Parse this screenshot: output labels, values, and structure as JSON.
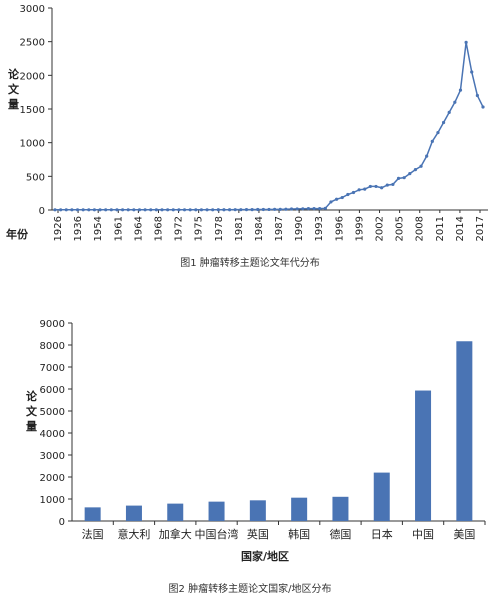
{
  "chart_data": [
    {
      "type": "line",
      "ylabel": "论文量",
      "xlabel": "年份",
      "caption": "图1 肿瘤转移主题论文年代分布",
      "ylim": [
        0,
        3000
      ],
      "yticks": [
        0,
        500,
        1000,
        1500,
        2000,
        2500,
        3000
      ],
      "xtick_labels": [
        "1926",
        "1936",
        "1954",
        "1961",
        "1964",
        "1968",
        "1972",
        "1975",
        "1978",
        "1981",
        "1984",
        "1987",
        "1990",
        "1993",
        "1996",
        "1999",
        "2002",
        "2005",
        "2008",
        "2011",
        "2014",
        "2017"
      ],
      "color": "#4a74b4",
      "values": [
        3,
        3,
        3,
        3,
        3,
        3,
        3,
        3,
        3,
        3,
        3,
        3,
        3,
        3,
        3,
        3,
        3,
        3,
        3,
        3,
        3,
        3,
        3,
        3,
        3,
        3,
        3,
        3,
        3,
        4,
        4,
        4,
        5,
        5,
        6,
        6,
        7,
        7,
        8,
        10,
        10,
        12,
        15,
        16,
        18,
        20,
        20,
        20,
        25,
        120,
        160,
        185,
        230,
        260,
        300,
        310,
        350,
        350,
        330,
        370,
        380,
        470,
        480,
        540,
        600,
        650,
        800,
        1020,
        1150,
        1300,
        1450,
        1600,
        1780,
        2490,
        2050,
        1700,
        1530
      ]
    },
    {
      "type": "bar",
      "ylabel": "论文量",
      "xlabel": "国家/地区",
      "caption": "图2 肿瘤转移主题论文国家/地区分布",
      "ylim": [
        0,
        9000
      ],
      "yticks": [
        0,
        1000,
        2000,
        3000,
        4000,
        5000,
        6000,
        7000,
        8000,
        9000
      ],
      "categories": [
        "法国",
        "意大利",
        "加拿大",
        "中国台湾",
        "英国",
        "韩国",
        "德国",
        "日本",
        "中国",
        "美国"
      ],
      "values": [
        620,
        700,
        790,
        880,
        940,
        1060,
        1100,
        2200,
        5930,
        8170
      ],
      "color": "#4a74b4"
    }
  ]
}
